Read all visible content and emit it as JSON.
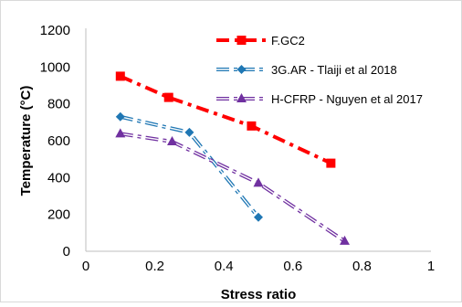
{
  "chart_data": {
    "type": "line",
    "title": "",
    "xlabel": "Stress ratio",
    "ylabel": "Temperature (°C)",
    "xlim": [
      0,
      1
    ],
    "ylim": [
      0,
      1200
    ],
    "x_ticks": [
      "0",
      "0.2",
      "0.4",
      "0.6",
      "0.8",
      "1"
    ],
    "y_ticks": [
      "0",
      "200",
      "400",
      "600",
      "800",
      "1000",
      "1200"
    ],
    "grid": false,
    "legend_position": "top-right",
    "series": [
      {
        "name": "F.GC2",
        "color": "#ff0000",
        "marker": "square",
        "line_style": "dash-dot",
        "points": [
          {
            "x": 0.1,
            "y": 950
          },
          {
            "x": 0.24,
            "y": 835
          },
          {
            "x": 0.48,
            "y": 680
          },
          {
            "x": 0.71,
            "y": 478
          }
        ]
      },
      {
        "name": "3G.AR - Tlaiji et al 2018",
        "color": "#1f77b4",
        "marker": "diamond",
        "line_style": "dash-dot-double",
        "points": [
          {
            "x": 0.1,
            "y": 730
          },
          {
            "x": 0.3,
            "y": 645
          },
          {
            "x": 0.5,
            "y": 185
          }
        ]
      },
      {
        "name": "H-CFRP - Nguyen et al 2017",
        "color": "#7030a0",
        "marker": "triangle",
        "line_style": "dash-dot-double",
        "points": [
          {
            "x": 0.1,
            "y": 638
          },
          {
            "x": 0.25,
            "y": 595
          },
          {
            "x": 0.5,
            "y": 370
          },
          {
            "x": 0.75,
            "y": 55
          }
        ]
      }
    ]
  }
}
